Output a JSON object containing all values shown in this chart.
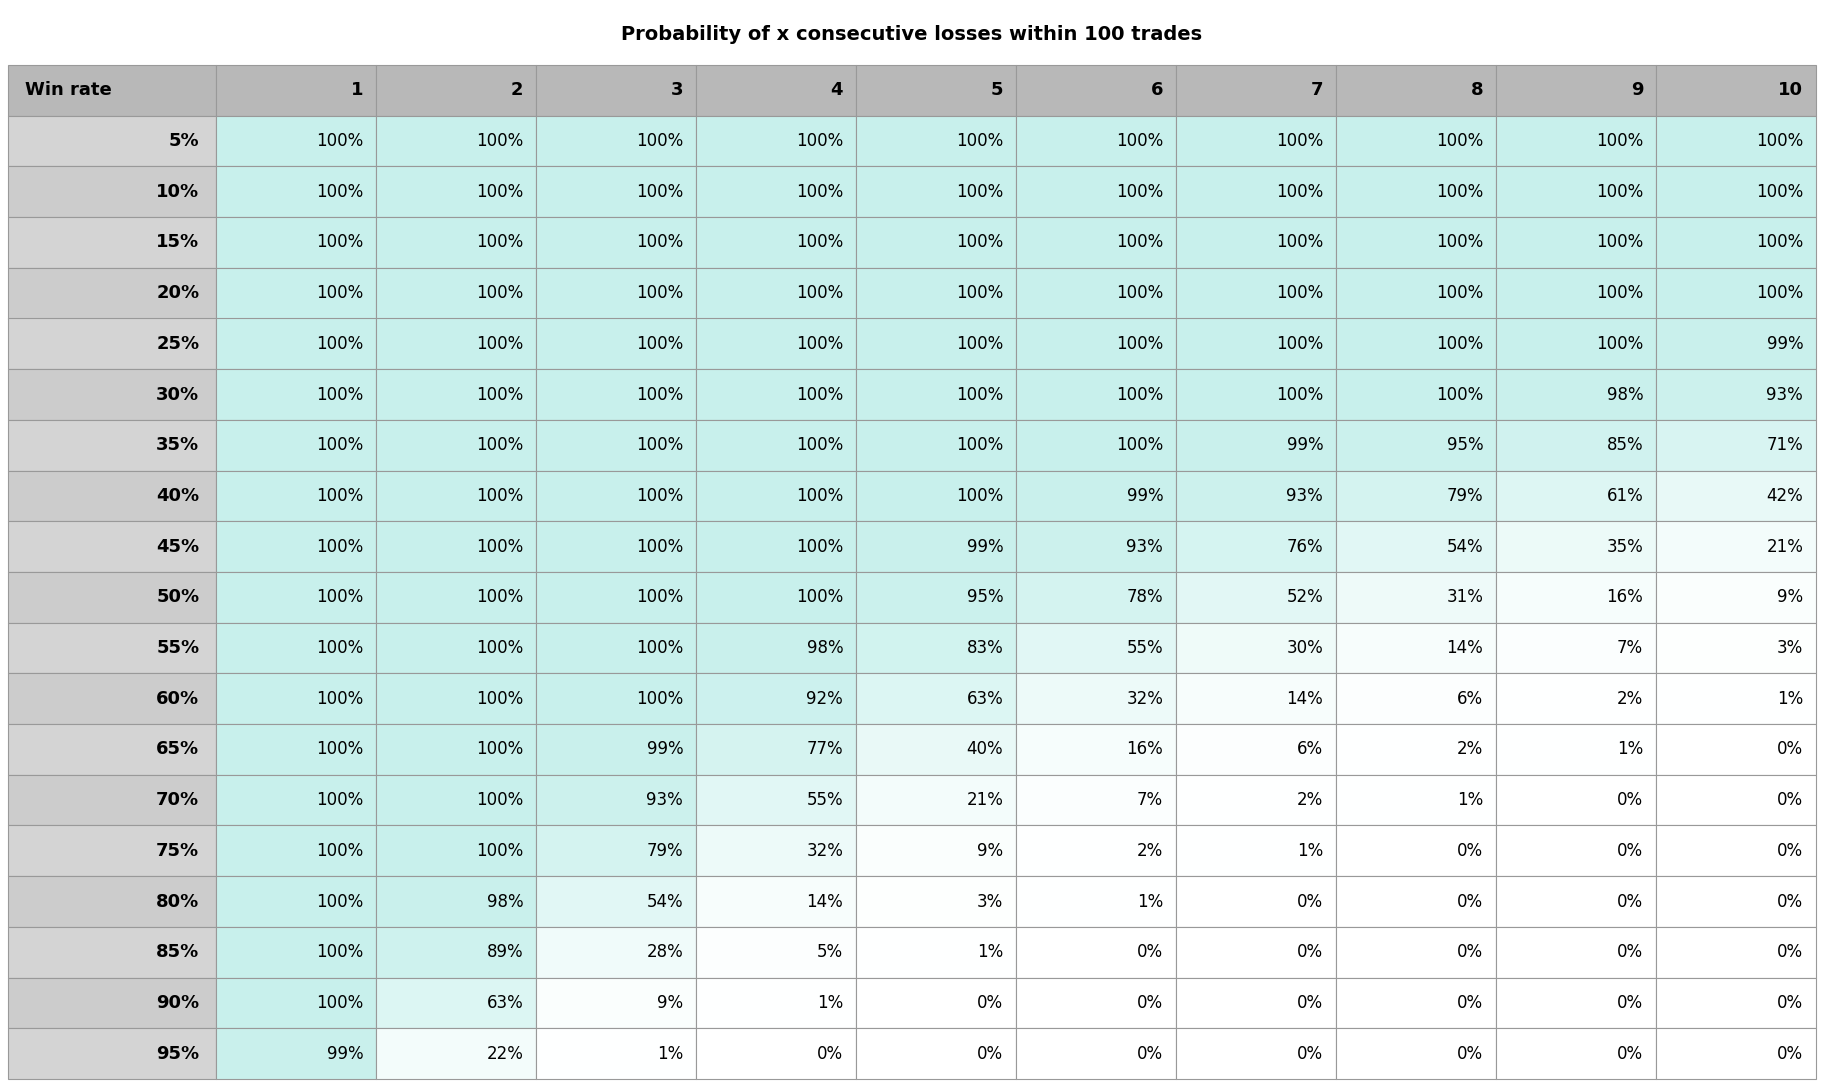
{
  "title": "Probability of x consecutive losses within 100 trades",
  "col_headers": [
    "Win rate",
    "1",
    "2",
    "3",
    "4",
    "5",
    "6",
    "7",
    "8",
    "9",
    "10"
  ],
  "row_labels": [
    "5%",
    "10%",
    "15%",
    "20%",
    "25%",
    "30%",
    "35%",
    "40%",
    "45%",
    "50%",
    "55%",
    "60%",
    "65%",
    "70%",
    "75%",
    "80%",
    "85%",
    "90%",
    "95%"
  ],
  "table_data": [
    [
      "100%",
      "100%",
      "100%",
      "100%",
      "100%",
      "100%",
      "100%",
      "100%",
      "100%",
      "100%"
    ],
    [
      "100%",
      "100%",
      "100%",
      "100%",
      "100%",
      "100%",
      "100%",
      "100%",
      "100%",
      "100%"
    ],
    [
      "100%",
      "100%",
      "100%",
      "100%",
      "100%",
      "100%",
      "100%",
      "100%",
      "100%",
      "100%"
    ],
    [
      "100%",
      "100%",
      "100%",
      "100%",
      "100%",
      "100%",
      "100%",
      "100%",
      "100%",
      "100%"
    ],
    [
      "100%",
      "100%",
      "100%",
      "100%",
      "100%",
      "100%",
      "100%",
      "100%",
      "100%",
      "99%"
    ],
    [
      "100%",
      "100%",
      "100%",
      "100%",
      "100%",
      "100%",
      "100%",
      "100%",
      "98%",
      "93%"
    ],
    [
      "100%",
      "100%",
      "100%",
      "100%",
      "100%",
      "100%",
      "99%",
      "95%",
      "85%",
      "71%"
    ],
    [
      "100%",
      "100%",
      "100%",
      "100%",
      "100%",
      "99%",
      "93%",
      "79%",
      "61%",
      "42%"
    ],
    [
      "100%",
      "100%",
      "100%",
      "100%",
      "99%",
      "93%",
      "76%",
      "54%",
      "35%",
      "21%"
    ],
    [
      "100%",
      "100%",
      "100%",
      "100%",
      "95%",
      "78%",
      "52%",
      "31%",
      "16%",
      "9%"
    ],
    [
      "100%",
      "100%",
      "100%",
      "98%",
      "83%",
      "55%",
      "30%",
      "14%",
      "7%",
      "3%"
    ],
    [
      "100%",
      "100%",
      "100%",
      "92%",
      "63%",
      "32%",
      "14%",
      "6%",
      "2%",
      "1%"
    ],
    [
      "100%",
      "100%",
      "99%",
      "77%",
      "40%",
      "16%",
      "6%",
      "2%",
      "1%",
      "0%"
    ],
    [
      "100%",
      "100%",
      "93%",
      "55%",
      "21%",
      "7%",
      "2%",
      "1%",
      "0%",
      "0%"
    ],
    [
      "100%",
      "100%",
      "79%",
      "32%",
      "9%",
      "2%",
      "1%",
      "0%",
      "0%",
      "0%"
    ],
    [
      "100%",
      "98%",
      "54%",
      "14%",
      "3%",
      "1%",
      "0%",
      "0%",
      "0%",
      "0%"
    ],
    [
      "100%",
      "89%",
      "28%",
      "5%",
      "1%",
      "0%",
      "0%",
      "0%",
      "0%",
      "0%"
    ],
    [
      "100%",
      "63%",
      "9%",
      "1%",
      "0%",
      "0%",
      "0%",
      "0%",
      "0%",
      "0%"
    ],
    [
      "99%",
      "22%",
      "1%",
      "0%",
      "0%",
      "0%",
      "0%",
      "0%",
      "0%",
      "0%"
    ]
  ],
  "numeric_data": [
    [
      100,
      100,
      100,
      100,
      100,
      100,
      100,
      100,
      100,
      100
    ],
    [
      100,
      100,
      100,
      100,
      100,
      100,
      100,
      100,
      100,
      100
    ],
    [
      100,
      100,
      100,
      100,
      100,
      100,
      100,
      100,
      100,
      100
    ],
    [
      100,
      100,
      100,
      100,
      100,
      100,
      100,
      100,
      100,
      100
    ],
    [
      100,
      100,
      100,
      100,
      100,
      100,
      100,
      100,
      100,
      99
    ],
    [
      100,
      100,
      100,
      100,
      100,
      100,
      100,
      100,
      98,
      93
    ],
    [
      100,
      100,
      100,
      100,
      100,
      100,
      99,
      95,
      85,
      71
    ],
    [
      100,
      100,
      100,
      100,
      100,
      99,
      93,
      79,
      61,
      42
    ],
    [
      100,
      100,
      100,
      100,
      99,
      93,
      76,
      54,
      35,
      21
    ],
    [
      100,
      100,
      100,
      100,
      95,
      78,
      52,
      31,
      16,
      9
    ],
    [
      100,
      100,
      100,
      98,
      83,
      55,
      30,
      14,
      7,
      3
    ],
    [
      100,
      100,
      100,
      92,
      63,
      32,
      14,
      6,
      2,
      1
    ],
    [
      100,
      100,
      99,
      77,
      40,
      16,
      6,
      2,
      1,
      0
    ],
    [
      100,
      100,
      93,
      55,
      21,
      7,
      2,
      1,
      0,
      0
    ],
    [
      100,
      100,
      79,
      32,
      9,
      2,
      1,
      0,
      0,
      0
    ],
    [
      100,
      98,
      54,
      14,
      3,
      1,
      0,
      0,
      0,
      0
    ],
    [
      100,
      89,
      28,
      5,
      1,
      0,
      0,
      0,
      0,
      0
    ],
    [
      100,
      63,
      9,
      1,
      0,
      0,
      0,
      0,
      0,
      0
    ],
    [
      99,
      22,
      1,
      0,
      0,
      0,
      0,
      0,
      0,
      0
    ]
  ],
  "header_bg": "#b8b8b8",
  "row_label_bg_odd": "#d4d4d4",
  "row_label_bg_even": "#cccccc",
  "cell_high_color": "#c8f0ec",
  "cell_low_color": "#ffffff",
  "title_fontsize": 14,
  "header_fontsize": 13,
  "cell_fontsize": 12,
  "row_label_fontsize": 13,
  "fig_width": 18.24,
  "fig_height": 10.84,
  "dpi": 100
}
